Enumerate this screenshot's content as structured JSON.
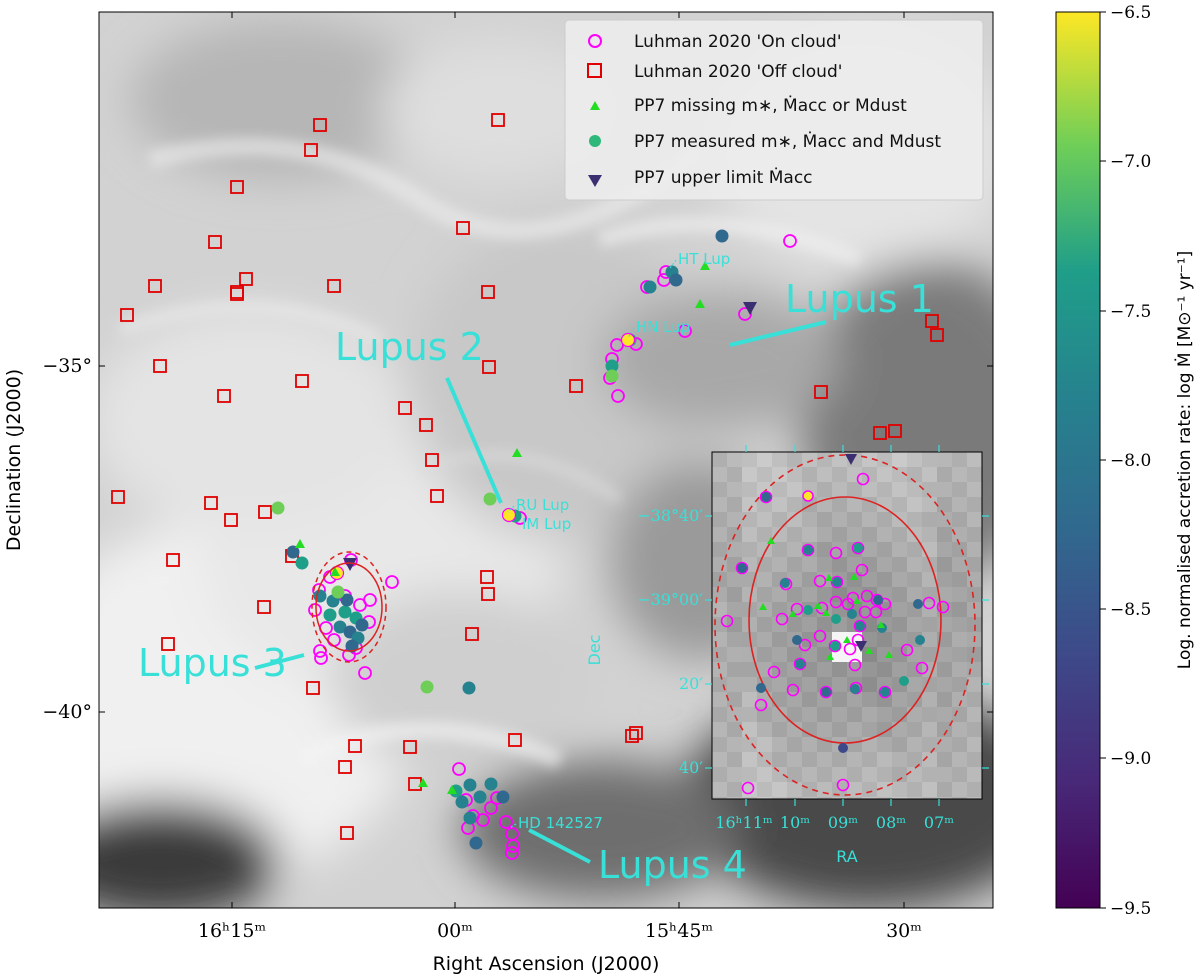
{
  "chart_data": {
    "type": "scatter",
    "xlabel": "Right Ascension (J2000)",
    "ylabel": "Declination (J2000)",
    "x_ticks": [
      {
        "label": "16ʰ15ᵐ",
        "value": "16h15m"
      },
      {
        "label": "00ᵐ",
        "value": "16h00m"
      },
      {
        "label": "15ʰ45ᵐ",
        "value": "15h45m"
      },
      {
        "label": "30ᵐ",
        "value": "15h30m"
      }
    ],
    "y_ticks": [
      {
        "label": "−35°",
        "value": -35
      },
      {
        "label": "−40°",
        "value": -40
      }
    ],
    "legend": {
      "position": "top-right",
      "entries": [
        {
          "key": "on_cloud",
          "label": "Luhman 2020 'On cloud'"
        },
        {
          "key": "off_cloud",
          "label": "Luhman 2020 'Off cloud'"
        },
        {
          "key": "missing",
          "label": "PP7 missing m∗, Ṁacc or Mdust"
        },
        {
          "key": "measured",
          "label": "PP7 measured m∗, Ṁacc and Mdust"
        },
        {
          "key": "upper",
          "label": "PP7 upper limit Ṁacc"
        }
      ]
    },
    "regions": [
      {
        "name": "Lupus 1"
      },
      {
        "name": "Lupus 2"
      },
      {
        "name": "Lupus 3"
      },
      {
        "name": "Lupus 4"
      }
    ],
    "star_labels": [
      "HT Lup",
      "HN Lup",
      "RU Lup",
      "IM Lup",
      "HD 142527"
    ],
    "colorbar": {
      "label": "Log. normalised accretion rate: log Ṁ [M⊙⁻¹ yr⁻¹]",
      "min": -9.5,
      "max": -6.5,
      "ticks": [
        "−6.5",
        "−7.0",
        "−7.5",
        "−8.0",
        "−8.5",
        "−9.0",
        "−9.5"
      ],
      "colormap": "viridis"
    },
    "inset": {
      "xlabel": "RA",
      "ylabel": "Dec",
      "x_ticks": [
        "16ʰ11ᵐ",
        "10ᵐ",
        "09ᵐ",
        "08ᵐ",
        "07ᵐ"
      ],
      "y_ticks": [
        "−38°40′",
        "−39°00′",
        "20′",
        "40′"
      ]
    },
    "colors": {
      "on_cloud": "#ff00ff",
      "off_cloud": "#e00000",
      "missing": "#22dd22",
      "annotation": "#38e0d8",
      "background_low": "#e6e6e6",
      "background_high": "#555555"
    }
  }
}
